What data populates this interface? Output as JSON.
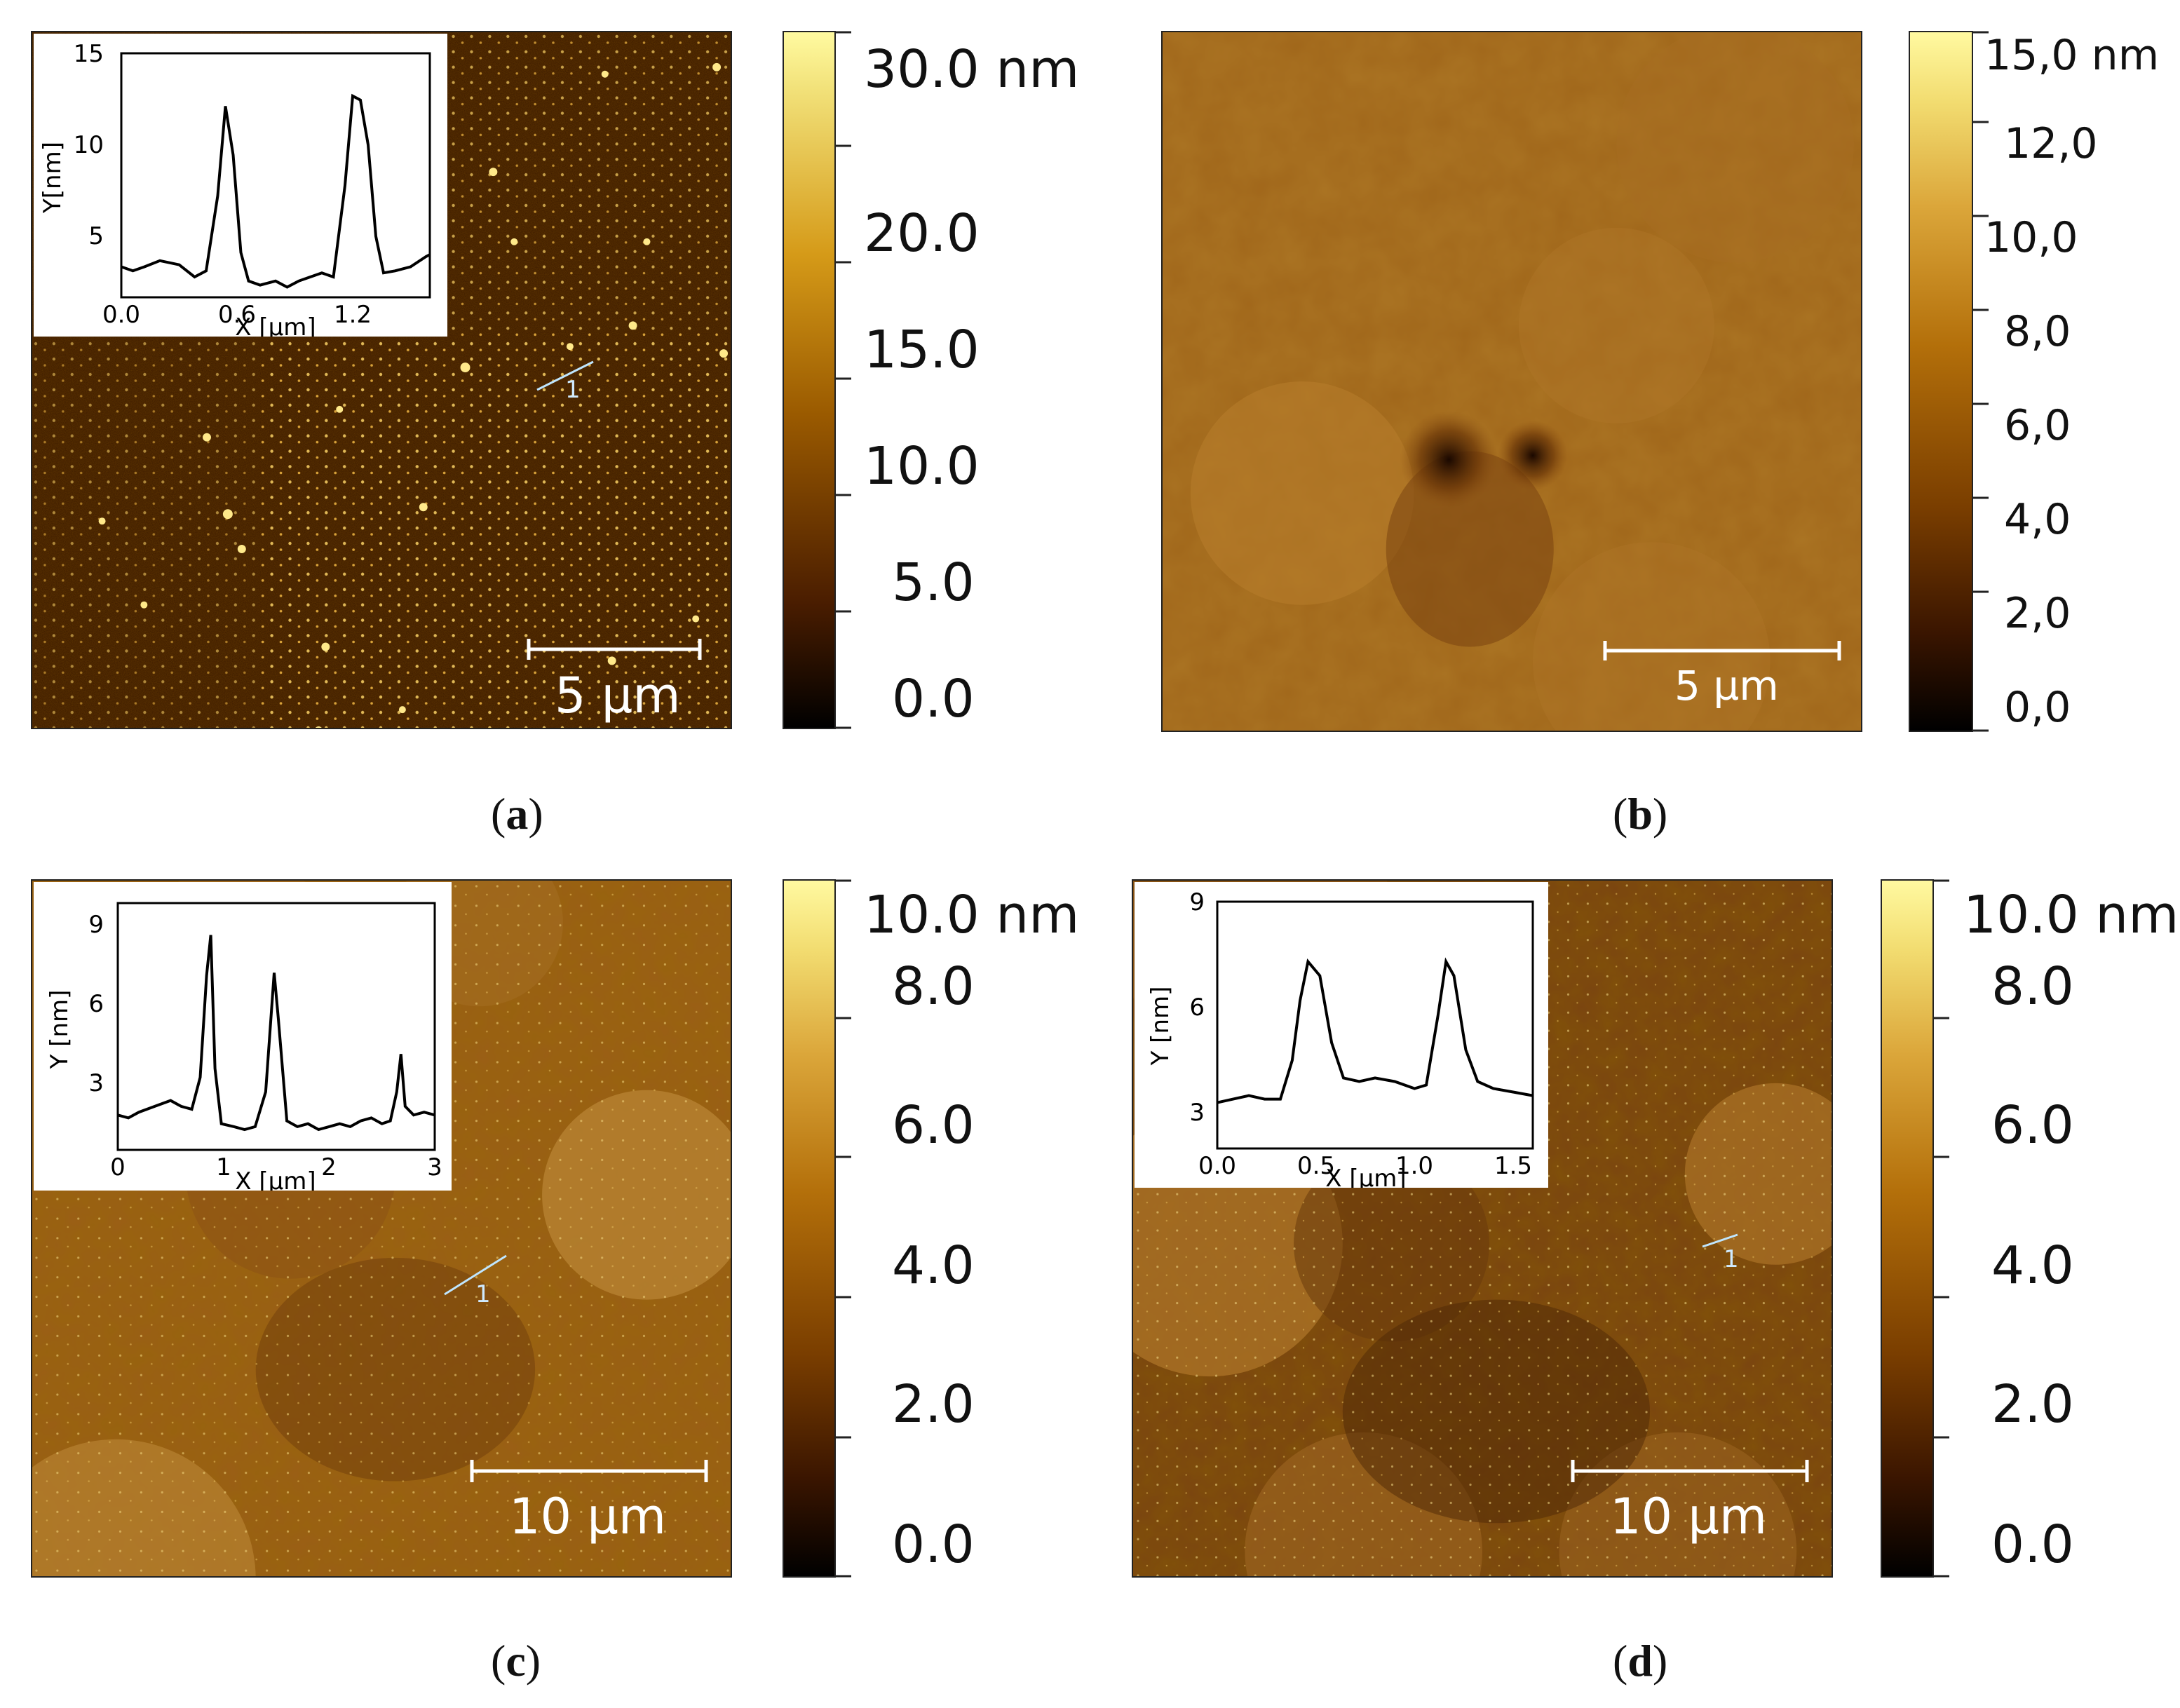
{
  "panels": {
    "a": {
      "caption_letter": "a",
      "scale_bar": "5 µm",
      "line_marker": "1",
      "colorbar": {
        "labels": [
          "30.0 nm",
          "20.0",
          "15.0",
          "10.0",
          "5.0",
          "0.0"
        ],
        "colors": [
          "#000000",
          "#4a1d00",
          "#9a5a00",
          "#d59a18",
          "#f2e27a",
          "#fffaa0"
        ]
      },
      "inset": {
        "xlabel": "X [µm]",
        "ylabel": "Y[nm]",
        "xticks": [
          "0.0",
          "0.6",
          "1.2"
        ],
        "yticks": [
          "15",
          "10",
          "5"
        ],
        "xrange": [
          0,
          1.6
        ],
        "yrange": [
          3,
          15
        ],
        "profile_x": [
          0,
          0.06,
          0.12,
          0.2,
          0.3,
          0.38,
          0.44,
          0.5,
          0.54,
          0.58,
          0.62,
          0.66,
          0.72,
          0.8,
          0.86,
          0.92,
          0.98,
          1.04,
          1.1,
          1.16,
          1.2,
          1.24,
          1.28,
          1.32,
          1.36,
          1.42,
          1.5,
          1.58,
          1.6
        ],
        "profile_y": [
          4.5,
          4.3,
          4.5,
          4.8,
          4.6,
          4.0,
          4.3,
          8.0,
          12.4,
          10.0,
          5.2,
          3.8,
          3.6,
          3.8,
          3.5,
          3.8,
          4.0,
          4.2,
          4.0,
          8.5,
          12.9,
          12.7,
          10.5,
          6.0,
          4.2,
          4.3,
          4.5,
          5.0,
          5.1
        ]
      }
    },
    "b": {
      "caption_letter": "b",
      "scale_bar": "5 µm",
      "colorbar": {
        "labels": [
          "15,0 nm",
          "12,0",
          "10,0",
          "8,0",
          "6,0",
          "4,0",
          "2,0",
          "0,0"
        ],
        "colors": [
          "#000000",
          "#3a1500",
          "#7a3e00",
          "#b36f0a",
          "#dba63a",
          "#f2dc70",
          "#fff9a0"
        ]
      }
    },
    "c": {
      "caption_letter": "c",
      "scale_bar": "10 µm",
      "line_marker": "1",
      "colorbar": {
        "labels": [
          "10.0 nm",
          "8.0",
          "6.0",
          "4.0",
          "2.0",
          "0.0"
        ],
        "colors": [
          "#000000",
          "#3a1500",
          "#7a3e00",
          "#b36f0a",
          "#dba63a",
          "#f2dc70",
          "#fff9a0"
        ]
      },
      "inset": {
        "xlabel": "X [µm]",
        "ylabel": "Y [nm]",
        "xticks": [
          "0",
          "1",
          "2",
          "3"
        ],
        "yticks": [
          "9",
          "6",
          "3"
        ],
        "xrange": [
          0,
          3
        ],
        "yrange": [
          1.5,
          10
        ],
        "profile_x": [
          0,
          0.1,
          0.2,
          0.35,
          0.5,
          0.6,
          0.7,
          0.78,
          0.84,
          0.88,
          0.92,
          0.98,
          1.1,
          1.2,
          1.3,
          1.4,
          1.48,
          1.52,
          1.6,
          1.7,
          1.8,
          1.9,
          2.0,
          2.1,
          2.2,
          2.3,
          2.4,
          2.5,
          2.58,
          2.64,
          2.68,
          2.72,
          2.8,
          2.9,
          3.0
        ],
        "profile_y": [
          2.7,
          2.6,
          2.8,
          3.0,
          3.2,
          3.0,
          2.9,
          4.0,
          7.5,
          8.9,
          4.3,
          2.4,
          2.3,
          2.2,
          2.3,
          3.5,
          7.6,
          6.0,
          2.5,
          2.3,
          2.4,
          2.2,
          2.3,
          2.4,
          2.3,
          2.5,
          2.6,
          2.4,
          2.5,
          3.5,
          4.8,
          3.0,
          2.7,
          2.8,
          2.7
        ]
      }
    },
    "d": {
      "caption_letter": "d",
      "scale_bar": "10 µm",
      "line_marker": "1",
      "colorbar": {
        "labels": [
          "10.0 nm",
          "8.0",
          "6.0",
          "4.0",
          "2.0",
          "0.0"
        ],
        "colors": [
          "#000000",
          "#3a1500",
          "#7a3e00",
          "#b36f0a",
          "#dba63a",
          "#f2dc70",
          "#fff9a0"
        ]
      },
      "inset": {
        "xlabel": "X [µm]",
        "ylabel": "Y [nm]",
        "xticks": [
          "0.0",
          "0.5",
          "1.0",
          "1.5"
        ],
        "yticks": [
          "9",
          "6",
          "3"
        ],
        "xrange": [
          0,
          1.6
        ],
        "yrange": [
          2,
          9
        ],
        "profile_x": [
          0,
          0.08,
          0.16,
          0.24,
          0.32,
          0.38,
          0.42,
          0.46,
          0.52,
          0.58,
          0.64,
          0.72,
          0.8,
          0.9,
          1.0,
          1.06,
          1.12,
          1.16,
          1.2,
          1.26,
          1.32,
          1.4,
          1.5,
          1.6
        ],
        "profile_y": [
          3.3,
          3.4,
          3.5,
          3.4,
          3.4,
          4.5,
          6.2,
          7.3,
          6.9,
          5.0,
          4.0,
          3.9,
          4.0,
          3.9,
          3.7,
          3.8,
          5.8,
          7.3,
          6.9,
          4.8,
          3.9,
          3.7,
          3.6,
          3.5
        ]
      }
    }
  }
}
